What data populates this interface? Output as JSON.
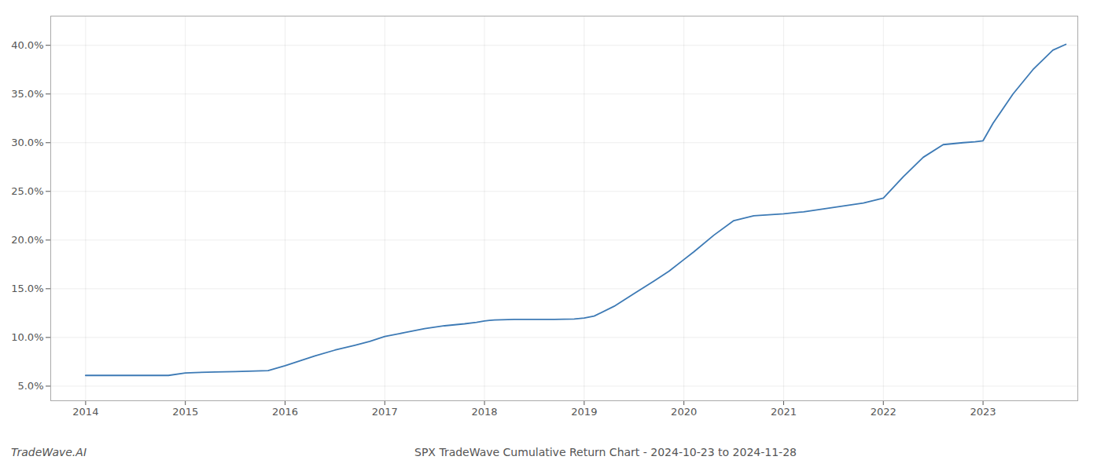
{
  "chart_data": {
    "type": "line",
    "title": "SPX TradeWave Cumulative Return Chart - 2024-10-23 to 2024-11-28",
    "annotations": [
      "TradeWave.AI"
    ],
    "x": [
      2014.0,
      2014.1,
      2014.3,
      2014.6,
      2014.83,
      2015.0,
      2015.1,
      2015.3,
      2015.5,
      2015.7,
      2015.83,
      2016.0,
      2016.15,
      2016.3,
      2016.5,
      2016.7,
      2016.85,
      2017.0,
      2017.2,
      2017.4,
      2017.6,
      2017.8,
      2017.92,
      2018.0,
      2018.05,
      2018.1,
      2018.3,
      2018.5,
      2018.7,
      2018.9,
      2019.0,
      2019.1,
      2019.3,
      2019.5,
      2019.7,
      2019.85,
      2020.0,
      2020.1,
      2020.3,
      2020.5,
      2020.7,
      2020.85,
      2021.0,
      2021.2,
      2021.4,
      2021.6,
      2021.8,
      2021.92,
      2022.0,
      2022.2,
      2022.4,
      2022.6,
      2022.8,
      2022.92,
      2023.0,
      2023.1,
      2023.3,
      2023.5,
      2023.7,
      2023.83
    ],
    "values": [
      6.1,
      6.1,
      6.1,
      6.1,
      6.1,
      6.35,
      6.4,
      6.45,
      6.5,
      6.55,
      6.6,
      7.1,
      7.6,
      8.1,
      8.7,
      9.2,
      9.6,
      10.1,
      10.5,
      10.9,
      11.2,
      11.4,
      11.55,
      11.7,
      11.75,
      11.8,
      11.85,
      11.85,
      11.85,
      11.9,
      12.0,
      12.2,
      13.2,
      14.5,
      15.8,
      16.8,
      18.0,
      18.8,
      20.5,
      22.0,
      22.5,
      22.6,
      22.7,
      22.9,
      23.2,
      23.5,
      23.8,
      24.1,
      24.3,
      26.5,
      28.5,
      29.8,
      30.0,
      30.1,
      30.2,
      32.0,
      35.0,
      37.5,
      39.5,
      40.1
    ],
    "color": "#3d7ab5",
    "xlim": [
      2013.65,
      2023.95
    ],
    "xticks": [
      2014,
      2015,
      2016,
      2017,
      2018,
      2019,
      2020,
      2021,
      2022,
      2023
    ],
    "ylim": [
      3.5,
      43.0
    ],
    "yticks": [
      {
        "value": 5.0,
        "label": "5.0%"
      },
      {
        "value": 10.0,
        "label": "10.0%"
      },
      {
        "value": 15.0,
        "label": "15.0%"
      },
      {
        "value": 20.0,
        "label": "20.0%"
      },
      {
        "value": 25.0,
        "label": "25.0%"
      },
      {
        "value": 30.0,
        "label": "30.0%"
      },
      {
        "value": 35.0,
        "label": "35.0%"
      },
      {
        "value": 40.0,
        "label": "40.0%"
      }
    ],
    "grid": true
  }
}
